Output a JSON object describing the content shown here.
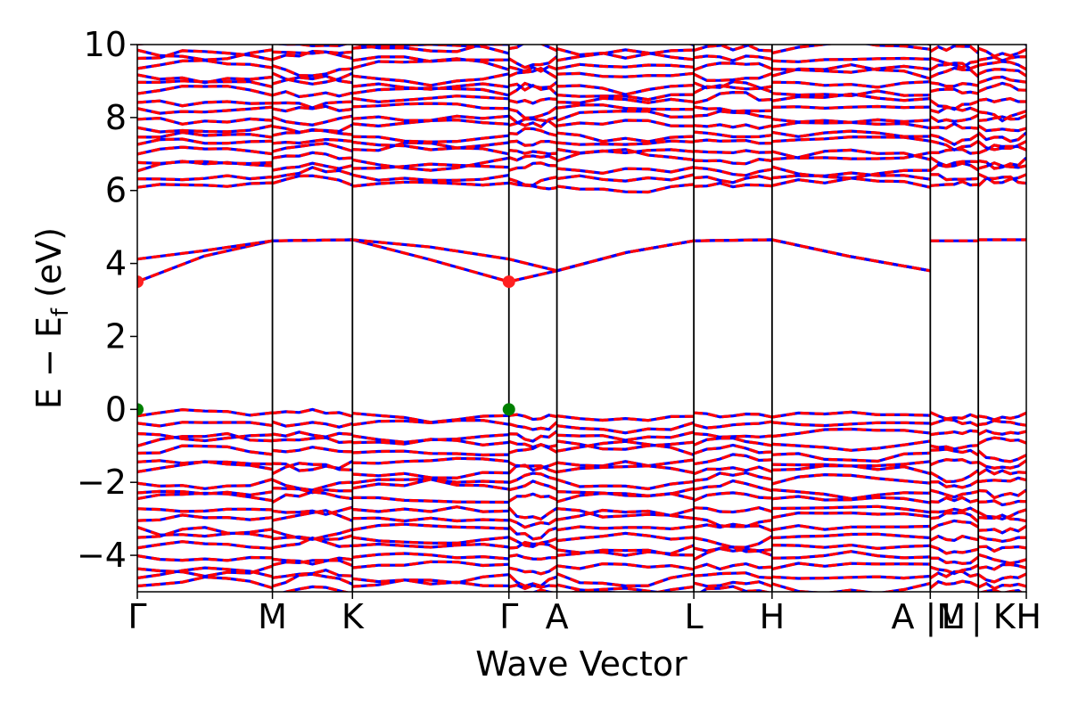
{
  "chart_data": {
    "type": "line",
    "xlabel": "Wave Vector",
    "ylabel": "E − E",
    "ylabel_sub": "f",
    "ylabel_unit": " (eV)",
    "ylim": [
      -5,
      10
    ],
    "yticks": [
      -4,
      -2,
      0,
      2,
      4,
      6,
      8,
      10
    ],
    "ytick_labels": [
      "−4",
      "−2",
      "0",
      "2",
      "4",
      "6",
      "8",
      "10"
    ],
    "x_range": [
      0,
      10
    ],
    "grid": false,
    "high_symmetry_points": [
      {
        "label": "Γ",
        "x": 0.0
      },
      {
        "label": "M",
        "x": 1.52
      },
      {
        "label": "K",
        "x": 2.42
      },
      {
        "label": "Γ",
        "x": 4.18
      },
      {
        "label": "A",
        "x": 4.72
      },
      {
        "label": "L",
        "x": 6.26
      },
      {
        "label": "H",
        "x": 7.14
      },
      {
        "label": "A |M",
        "x": 8.92
      },
      {
        "label": "L | K",
        "x": 9.46
      },
      {
        "label": "H",
        "x": 10.0
      }
    ],
    "series_colors": {
      "solid": "#0000ff",
      "dashed": "#ff0000"
    },
    "markers": [
      {
        "name": "CBM",
        "x": 0.0,
        "y": 3.5,
        "color": "#ff2020"
      },
      {
        "name": "CBM",
        "x": 4.18,
        "y": 3.5,
        "color": "#ff2020"
      },
      {
        "name": "VBM",
        "x": 0.0,
        "y": 0.0,
        "color": "#008000"
      },
      {
        "name": "VBM",
        "x": 4.18,
        "y": 0.0,
        "color": "#008000"
      }
    ],
    "bands_gap_region": [
      {
        "x": [
          0.0,
          0.75,
          1.52,
          2.42,
          3.3,
          4.18,
          4.72,
          5.5,
          6.26,
          7.14,
          8.0,
          8.92
        ],
        "y": [
          3.5,
          4.2,
          4.62,
          4.65,
          4.1,
          3.5,
          3.8,
          4.3,
          4.62,
          4.65,
          4.2,
          3.8
        ]
      },
      {
        "x": [
          0.0,
          0.75,
          1.52,
          2.42,
          3.3,
          4.18,
          4.72,
          5.5,
          6.26,
          7.14,
          8.0,
          8.92
        ],
        "y": [
          4.12,
          4.35,
          4.62,
          4.65,
          4.45,
          4.12,
          3.8,
          4.3,
          4.62,
          4.65,
          4.2,
          3.8
        ]
      },
      {
        "x": [
          8.92,
          9.46
        ],
        "y": [
          4.62,
          4.62
        ]
      },
      {
        "x": [
          9.46,
          10.0
        ],
        "y": [
          4.65,
          4.65
        ]
      }
    ]
  }
}
